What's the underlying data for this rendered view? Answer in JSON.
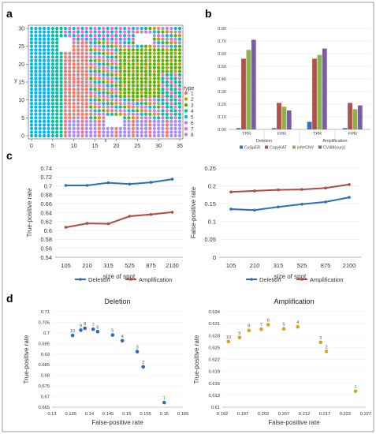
{
  "panel_labels": {
    "a": "a",
    "b": "b",
    "c": "c",
    "d": "d"
  },
  "colors": {
    "t1": "#f8766d",
    "t2": "#c49a00",
    "t3": "#53b400",
    "t4": "#00c094",
    "t5": "#00b6eb",
    "t6": "#a58aff",
    "t7": "#fb61d7",
    "t8": "#9aa0a6",
    "casper": "#3a6fb0",
    "copykat": "#b0514c",
    "infercnv": "#8fb24f",
    "cv4m": "#7c5da8",
    "deletion": "#2e6bbf",
    "amplification": "#b04a43",
    "dots_del": "#2e6bbf",
    "dots_amp": "#d7a31a",
    "dots_label_green": "#2f9e3a"
  },
  "chart_data": [
    {
      "id": "a",
      "type": "scatter",
      "title": "",
      "xlabel": "x",
      "ylabel": "y",
      "xlim": [
        0,
        35
      ],
      "ylim": [
        0,
        30
      ],
      "xticks": [
        "0",
        "5",
        "10",
        "15",
        "20",
        "25",
        "30",
        "35"
      ],
      "yticks": [
        "0",
        "5",
        "10",
        "15",
        "20",
        "25",
        "30"
      ],
      "legend_title": "type",
      "legend": [
        "1",
        "2",
        "3",
        "4",
        "5",
        "6",
        "7",
        "8"
      ],
      "legend_position": "right",
      "note": "spot grid colored by cell type"
    },
    {
      "id": "b",
      "type": "bar",
      "groups": [
        "Deletion",
        "Amplification"
      ],
      "categories": [
        "TPR",
        "FPR",
        "TPR",
        "FPR"
      ],
      "ylim": [
        0,
        0.8
      ],
      "yticks": [
        "0.00",
        "0.10",
        "0.20",
        "0.30",
        "0.40",
        "0.50",
        "0.60",
        "0.70",
        "0.80"
      ],
      "series": [
        {
          "name": "CaSpER",
          "values": [
            0.01,
            0.01,
            0.06,
            0.01
          ]
        },
        {
          "name": "CopyKAT",
          "values": [
            0.56,
            0.21,
            0.56,
            0.21
          ]
        },
        {
          "name": "inferCNV",
          "values": [
            0.63,
            0.18,
            0.59,
            0.16
          ]
        },
        {
          "name": "CV4M(ours)",
          "values": [
            0.71,
            0.15,
            0.64,
            0.19
          ]
        }
      ],
      "legend_position": "bottom"
    },
    {
      "id": "c-left",
      "type": "line",
      "xlabel": "size of spot",
      "ylabel": "True-positive rate",
      "categories": [
        "105",
        "210",
        "315",
        "525",
        "875",
        "2100"
      ],
      "ylim": [
        0.54,
        0.74
      ],
      "yticks": [
        "0.54",
        "0.56",
        "0.58",
        "0.6",
        "0.62",
        "0.64",
        "0.66",
        "0.68",
        "0.7",
        "0.72",
        "0.74"
      ],
      "series": [
        {
          "name": "Deletion",
          "values": [
            0.701,
            0.701,
            0.707,
            0.704,
            0.708,
            0.715
          ]
        },
        {
          "name": "Amplification",
          "values": [
            0.607,
            0.616,
            0.615,
            0.632,
            0.636,
            0.641
          ]
        }
      ],
      "legend_position": "bottom"
    },
    {
      "id": "c-right",
      "type": "line",
      "xlabel": "size of spot",
      "ylabel": "False-positive rate",
      "categories": [
        "105",
        "210",
        "315",
        "525",
        "875",
        "2100"
      ],
      "ylim": [
        0,
        0.25
      ],
      "yticks": [
        "0",
        "0.05",
        "0.1",
        "0.15",
        "0.2",
        "0.25"
      ],
      "series": [
        {
          "name": "Deletion",
          "values": [
            0.135,
            0.132,
            0.141,
            0.149,
            0.155,
            0.168
          ]
        },
        {
          "name": "Amplification",
          "values": [
            0.183,
            0.186,
            0.189,
            0.19,
            0.194,
            0.204
          ]
        }
      ],
      "legend_position": "bottom"
    },
    {
      "id": "d-left",
      "type": "scatter",
      "title": "Deletion",
      "xlabel": "False-positive rate",
      "ylabel": "True-positive rate",
      "xlim": [
        0.13,
        0.165
      ],
      "ylim": [
        0.665,
        0.71
      ],
      "xticks": [
        "0.13",
        "0.135",
        "0.14",
        "0.145",
        "0.15",
        "0.155",
        "0.16",
        "0.165"
      ],
      "yticks": [
        "0.665",
        "0.67",
        "0.675",
        "0.68",
        "0.685",
        "0.69",
        "0.695",
        "0.7",
        "0.705",
        "0.71"
      ],
      "points": [
        {
          "label": "10",
          "x": 0.1355,
          "y": 0.6988
        },
        {
          "label": "9",
          "x": 0.1377,
          "y": 0.7013
        },
        {
          "label": "8",
          "x": 0.1388,
          "y": 0.7022
        },
        {
          "label": "7",
          "x": 0.141,
          "y": 0.7017
        },
        {
          "label": "6",
          "x": 0.1422,
          "y": 0.7006
        },
        {
          "label": "5",
          "x": 0.1462,
          "y": 0.699
        },
        {
          "label": "4",
          "x": 0.1488,
          "y": 0.6963
        },
        {
          "label": "3",
          "x": 0.1528,
          "y": 0.6912
        },
        {
          "label": "2",
          "x": 0.1544,
          "y": 0.684
        },
        {
          "label": "1",
          "x": 0.16,
          "y": 0.6672
        }
      ]
    },
    {
      "id": "d-right",
      "type": "scatter",
      "title": "Amplification",
      "xlabel": "False-positive rate",
      "ylabel": "True-positive rate",
      "xlim": [
        0.192,
        0.227
      ],
      "ylim": [
        0.61,
        0.634
      ],
      "xticks": [
        "0.192",
        "0.197",
        "0.202",
        "0.207",
        "0.212",
        "0.217",
        "0.222",
        "0.227"
      ],
      "yticks": [
        "0.61",
        "0.613",
        "0.616",
        "0.619",
        "0.622",
        "0.625",
        "0.628",
        "0.631",
        "0.634"
      ],
      "points": [
        {
          "label": "10",
          "x": 0.1935,
          "y": 0.6265
        },
        {
          "label": "9",
          "x": 0.1962,
          "y": 0.6275
        },
        {
          "label": "8",
          "x": 0.1985,
          "y": 0.6293
        },
        {
          "label": "7",
          "x": 0.2015,
          "y": 0.6296
        },
        {
          "label": "6",
          "x": 0.2032,
          "y": 0.6307
        },
        {
          "label": "5",
          "x": 0.207,
          "y": 0.6297
        },
        {
          "label": "4",
          "x": 0.2104,
          "y": 0.6302
        },
        {
          "label": "3",
          "x": 0.216,
          "y": 0.6263
        },
        {
          "label": "2",
          "x": 0.2174,
          "y": 0.624
        },
        {
          "label": "1",
          "x": 0.2245,
          "y": 0.614
        }
      ]
    }
  ]
}
